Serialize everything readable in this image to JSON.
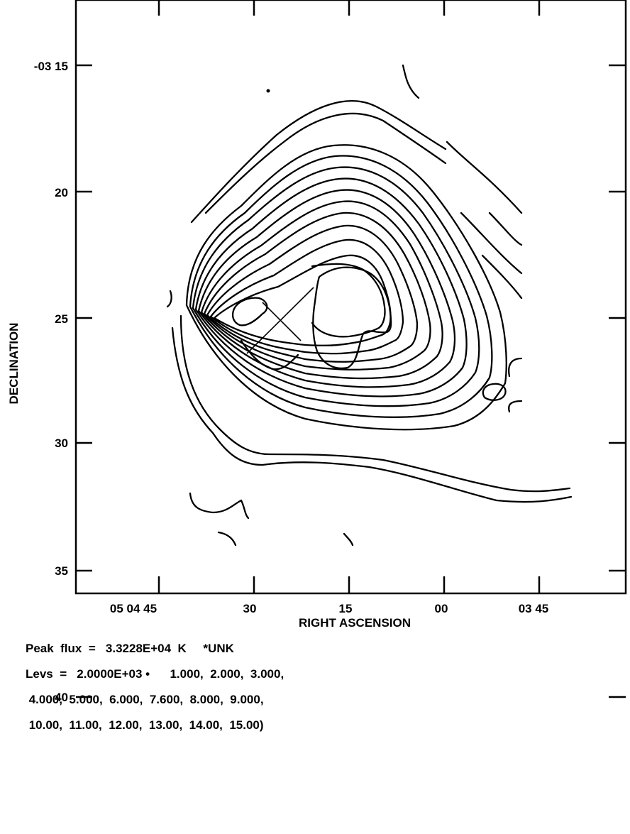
{
  "chart_data": {
    "type": "contour",
    "title": "",
    "xlabel": "RIGHT ASCENSION",
    "ylabel": "DECLINATION",
    "x_ticks": [
      "05 04 45",
      "30",
      "15",
      "00",
      "03 45"
    ],
    "y_ticks": [
      "-03 15",
      "20",
      "25",
      "30",
      "35",
      "40"
    ],
    "ylim": [
      "-03 15",
      "40"
    ],
    "grid": false,
    "peak_flux": "3.3228E+04 K",
    "units_note": "*UNK",
    "base_level": "2.0000E+03",
    "levels": [
      1.0,
      2.0,
      3.0,
      4.0,
      5.0,
      6.0,
      7.6,
      8.0,
      9.0,
      10.0,
      11.0,
      12.0,
      13.0,
      14.0,
      15.0
    ],
    "peak_marker": "cross"
  },
  "footer": {
    "line1": "Peak  flux  =   3.3228E+04  K     *UNK",
    "line2": "Levs  =   2.0000E+03 •      1.000,  2.000,  3.000,",
    "line3": " 4.000,  5.000,  6.000,  7.600,  8.000,  9.000,",
    "line4": " 10.00,  11.00,  12.00,  13.00,  14.00,  15.00)"
  }
}
